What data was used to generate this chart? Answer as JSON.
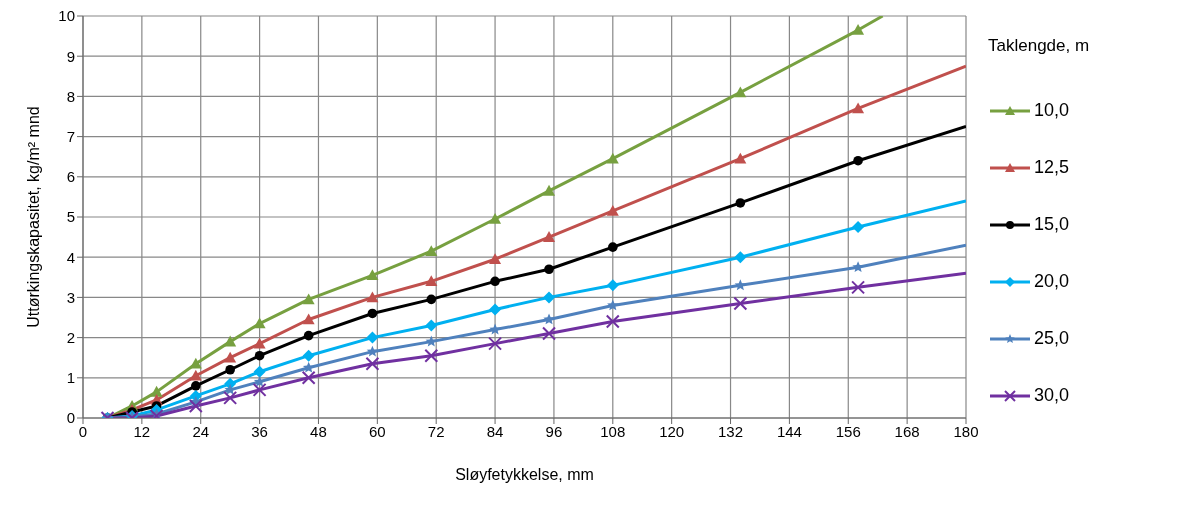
{
  "chart_data": {
    "type": "line",
    "xlabel": "Sløyfetykkelse, mm",
    "ylabel": "Uttørkingskapasitet, kg/m² mnd",
    "legend_title": "Taklengde, m",
    "legend": "right",
    "grid": true,
    "line_style": "solid",
    "xlim": [
      0,
      180
    ],
    "xticks": [
      0,
      12,
      24,
      36,
      48,
      60,
      72,
      84,
      96,
      108,
      120,
      132,
      144,
      156,
      168,
      180
    ],
    "ylim": [
      0,
      10
    ],
    "yticks": [
      0,
      1,
      2,
      3,
      4,
      5,
      6,
      7,
      8,
      9,
      10
    ],
    "series": [
      {
        "name": "10,0",
        "color": "#77a040",
        "marker": "triangle",
        "x": [
          5,
          10,
          15,
          23,
          30,
          36,
          46,
          59,
          71,
          84,
          95,
          108,
          134,
          158,
          163
        ],
        "values": [
          0,
          0.3,
          0.65,
          1.35,
          1.9,
          2.35,
          2.95,
          3.55,
          4.15,
          4.95,
          5.65,
          6.45,
          8.1,
          9.65,
          10
        ]
      },
      {
        "name": "12,5",
        "color": "#c0504d",
        "marker": "triangle",
        "x": [
          5,
          10,
          15,
          23,
          30,
          36,
          46,
          59,
          71,
          84,
          95,
          108,
          134,
          158,
          180
        ],
        "values": [
          0,
          0.2,
          0.45,
          1.05,
          1.5,
          1.85,
          2.45,
          3.0,
          3.4,
          3.95,
          4.5,
          5.15,
          6.45,
          7.7,
          8.75
        ]
      },
      {
        "name": "15,0",
        "color": "#000000",
        "marker": "circle",
        "x": [
          5,
          10,
          15,
          23,
          30,
          36,
          46,
          59,
          71,
          84,
          95,
          108,
          134,
          158,
          180
        ],
        "values": [
          0,
          0.15,
          0.3,
          0.8,
          1.2,
          1.55,
          2.05,
          2.6,
          2.95,
          3.4,
          3.7,
          4.25,
          5.35,
          6.4,
          7.25
        ]
      },
      {
        "name": "20,0",
        "color": "#00b0f0",
        "marker": "diamond",
        "x": [
          5,
          10,
          15,
          23,
          30,
          36,
          46,
          59,
          71,
          84,
          95,
          108,
          134,
          158,
          180
        ],
        "values": [
          0,
          0.05,
          0.2,
          0.55,
          0.85,
          1.15,
          1.55,
          2.0,
          2.3,
          2.7,
          3.0,
          3.3,
          4.0,
          4.75,
          5.4
        ]
      },
      {
        "name": "25,0",
        "color": "#4f81bd",
        "marker": "star",
        "x": [
          5,
          10,
          15,
          23,
          30,
          36,
          46,
          59,
          71,
          84,
          95,
          108,
          134,
          158,
          180
        ],
        "values": [
          0,
          0.03,
          0.1,
          0.4,
          0.7,
          0.9,
          1.25,
          1.65,
          1.9,
          2.2,
          2.45,
          2.8,
          3.3,
          3.75,
          4.3
        ]
      },
      {
        "name": "30,0",
        "color": "#7030a0",
        "marker": "cross",
        "x": [
          5,
          10,
          15,
          23,
          30,
          36,
          46,
          59,
          71,
          84,
          95,
          108,
          134,
          158,
          180
        ],
        "values": [
          0,
          0,
          0.05,
          0.3,
          0.5,
          0.7,
          1.0,
          1.35,
          1.55,
          1.85,
          2.1,
          2.4,
          2.85,
          3.25,
          3.6
        ]
      }
    ]
  }
}
